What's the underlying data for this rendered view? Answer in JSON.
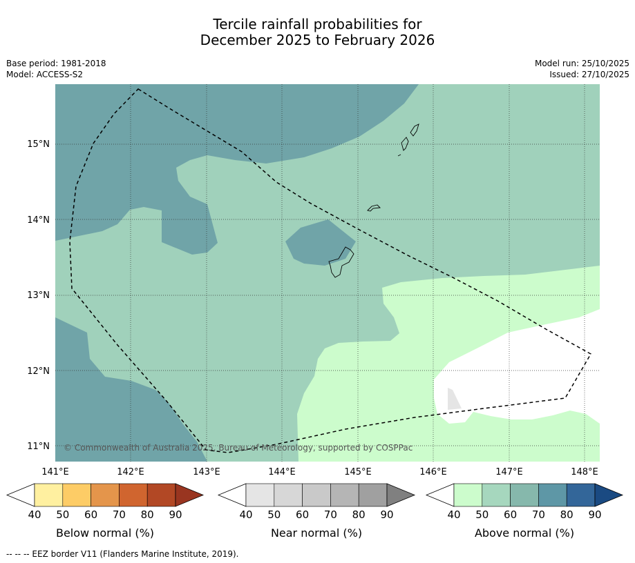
{
  "title_line1": "Tercile rainfall probabilities for",
  "title_line2": "December 2025 to February 2026",
  "meta": {
    "base_period": "Base period: 1981-2018",
    "model": "Model: ACCESS-S2",
    "model_run": "Model run: 25/10/2025",
    "issued": "Issued: 27/10/2025"
  },
  "map": {
    "lon_range": [
      141.0,
      148.2
    ],
    "lat_range": [
      10.8,
      15.8
    ],
    "lon_ticks": [
      "141°E",
      "142°E",
      "143°E",
      "144°E",
      "145°E",
      "146°E",
      "147°E",
      "148°E"
    ],
    "lat_ticks": [
      "15°N",
      "14°N",
      "13°N",
      "12°N",
      "11°N"
    ],
    "copyright": "© Commonwealth of Australia 2025, Bureau of Meteorology, supported by COSPPac",
    "colors": {
      "above_50": "#a0d1bb",
      "above_60_70": "#70a4a8",
      "above_40": "#ccfccc",
      "neutral": "#ffffff",
      "near_40": "#e5e5e5"
    }
  },
  "colorbars": [
    {
      "label": "Below normal (%)",
      "ticks": [
        "40",
        "50",
        "60",
        "70",
        "80",
        "90"
      ],
      "colors": [
        "#ffffff",
        "#fff0a0",
        "#fdcc66",
        "#e4954b",
        "#d0652f",
        "#b24825",
        "#993520"
      ]
    },
    {
      "label": "Near normal (%)",
      "ticks": [
        "40",
        "50",
        "60",
        "70",
        "80",
        "90"
      ],
      "colors": [
        "#ffffff",
        "#e5e5e5",
        "#d7d7d7",
        "#c9c9c9",
        "#b5b5b5",
        "#a0a0a0",
        "#808080"
      ]
    },
    {
      "label": "Above normal (%)",
      "ticks": [
        "40",
        "50",
        "60",
        "70",
        "80",
        "90"
      ],
      "colors": [
        "#ffffff",
        "#ccfccc",
        "#a6d7be",
        "#86b8ac",
        "#5e97a6",
        "#336699",
        "#1a4a82"
      ]
    }
  ],
  "footnote": "-- -- -- EEZ border V11 (Flanders Marine Institute, 2019)."
}
